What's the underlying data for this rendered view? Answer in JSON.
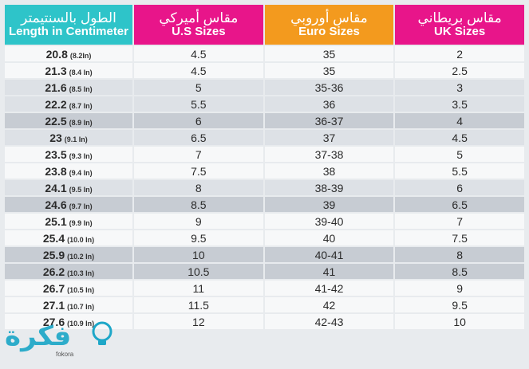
{
  "headers": {
    "length": {
      "ar": "الطول بالسنتيمتر",
      "en": "Length in Centimeter"
    },
    "us": {
      "ar": "مقاس أميركي",
      "en": "U.S Sizes"
    },
    "euro": {
      "ar": "مقاس أوروبي",
      "en": "Euro Sizes"
    },
    "uk": {
      "ar": "مقاس بريطاني",
      "en": "UK Sizes"
    }
  },
  "rows": [
    {
      "cm": "20.8",
      "inch": "(8.2In)",
      "us": "4.5",
      "euro": "35",
      "uk": "2"
    },
    {
      "cm": "21.3",
      "inch": "(8.4 In)",
      "us": "4.5",
      "euro": "35",
      "uk": "2.5"
    },
    {
      "cm": "21.6",
      "inch": "(8.5 In)",
      "us": "5",
      "euro": "35-36",
      "uk": "3"
    },
    {
      "cm": "22.2",
      "inch": "(8.7 In)",
      "us": "5.5",
      "euro": "36",
      "uk": "3.5"
    },
    {
      "cm": "22.5",
      "inch": "(8.9 In)",
      "us": "6",
      "euro": "36-37",
      "uk": "4"
    },
    {
      "cm": "23",
      "inch": "(9.1 In)",
      "us": "6.5",
      "euro": "37",
      "uk": "4.5"
    },
    {
      "cm": "23.5",
      "inch": "(9.3 In)",
      "us": "7",
      "euro": "37-38",
      "uk": "5"
    },
    {
      "cm": "23.8",
      "inch": "(9.4 In)",
      "us": "7.5",
      "euro": "38",
      "uk": "5.5"
    },
    {
      "cm": "24.1",
      "inch": "(9.5 In)",
      "us": "8",
      "euro": "38-39",
      "uk": "6"
    },
    {
      "cm": "24.6",
      "inch": "(9.7 In)",
      "us": "8.5",
      "euro": "39",
      "uk": "6.5"
    },
    {
      "cm": "25.1",
      "inch": "(9.9 In)",
      "us": "9",
      "euro": "39-40",
      "uk": "7"
    },
    {
      "cm": "25.4",
      "inch": "(10.0 In)",
      "us": "9.5",
      "euro": "40",
      "uk": "7.5"
    },
    {
      "cm": "25.9",
      "inch": "(10.2 In)",
      "us": "10",
      "euro": "40-41",
      "uk": "8"
    },
    {
      "cm": "26.2",
      "inch": "(10.3 In)",
      "us": "10.5",
      "euro": "41",
      "uk": "8.5"
    },
    {
      "cm": "26.7",
      "inch": "(10.5 In)",
      "us": "11",
      "euro": "41-42",
      "uk": "9"
    },
    {
      "cm": "27.1",
      "inch": "(10.7 In)",
      "us": "11.5",
      "euro": "42",
      "uk": "9.5"
    },
    {
      "cm": "27.6",
      "inch": "(10.9 In)",
      "us": "12",
      "euro": "42-43",
      "uk": "10"
    }
  ],
  "row_shades": [
    "light",
    "light",
    "mid",
    "mid",
    "dark",
    "mid",
    "light",
    "light",
    "mid",
    "dark",
    "light",
    "light",
    "dark",
    "dark",
    "light",
    "light",
    "light"
  ],
  "watermark": {
    "ar": "فكرة",
    "en": "fokora"
  },
  "colors": {
    "teal": "#2ec4c9",
    "magenta": "#e8158a",
    "orange": "#f39a1e"
  }
}
